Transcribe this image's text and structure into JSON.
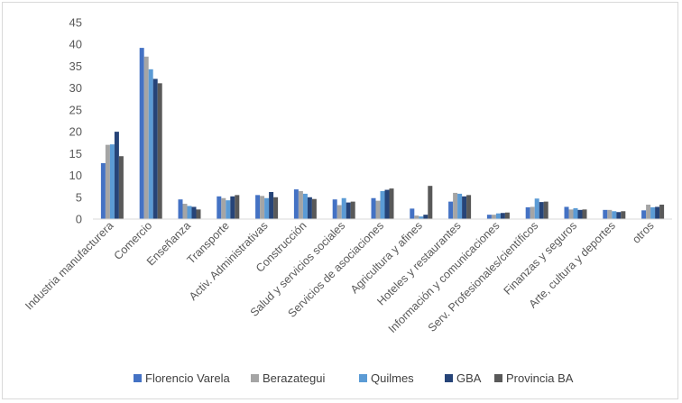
{
  "chart_data": {
    "type": "bar",
    "categories": [
      "Industria manufacturera",
      "Comercio",
      "Enseñanza",
      "Transporte",
      "Activ. Administrativas",
      "Construcción",
      "Salud y servicios sociales",
      "Servicios de asociaciones",
      "Agricultura y afines",
      "Hoteles y restaurantes",
      "Información y comunicaciones",
      "Serv. Profesionales/científicos",
      "Finanzas y seguros",
      "Arte, cultura y deportes",
      "otros"
    ],
    "series": [
      {
        "name": "Florencio Varela",
        "color": "#4472c4",
        "values": [
          12.8,
          39.2,
          4.5,
          5.2,
          5.5,
          6.8,
          4.5,
          4.8,
          2.4,
          4.0,
          1.0,
          2.7,
          2.8,
          2.1,
          2.0
        ]
      },
      {
        "name": "Berazategui",
        "color": "#a5a5a5",
        "values": [
          17.0,
          37.2,
          3.5,
          4.8,
          5.3,
          6.4,
          3.2,
          4.2,
          0.8,
          6.0,
          1.0,
          2.8,
          2.2,
          2.1,
          3.3
        ]
      },
      {
        "name": "Quilmes",
        "color": "#5b9bd5",
        "values": [
          17.1,
          34.3,
          3.0,
          4.3,
          4.8,
          5.8,
          4.8,
          6.4,
          0.6,
          5.8,
          1.3,
          4.7,
          2.5,
          1.8,
          2.7
        ]
      },
      {
        "name": "GBA",
        "color": "#264478",
        "values": [
          20.0,
          32.1,
          2.8,
          5.2,
          6.2,
          5.0,
          3.8,
          6.7,
          1.0,
          5.2,
          1.4,
          3.9,
          2.1,
          1.6,
          2.8
        ]
      },
      {
        "name": "Provincia BA",
        "color": "#595959",
        "values": [
          14.4,
          31.1,
          2.2,
          5.5,
          5.0,
          4.6,
          4.0,
          7.0,
          7.6,
          5.5,
          1.5,
          4.0,
          2.2,
          1.8,
          3.3
        ]
      }
    ],
    "yticks": [
      0,
      5,
      10,
      15,
      20,
      25,
      30,
      35,
      40,
      45
    ],
    "ylim": [
      0,
      45
    ],
    "grid": false,
    "legend_position": "bottom"
  }
}
